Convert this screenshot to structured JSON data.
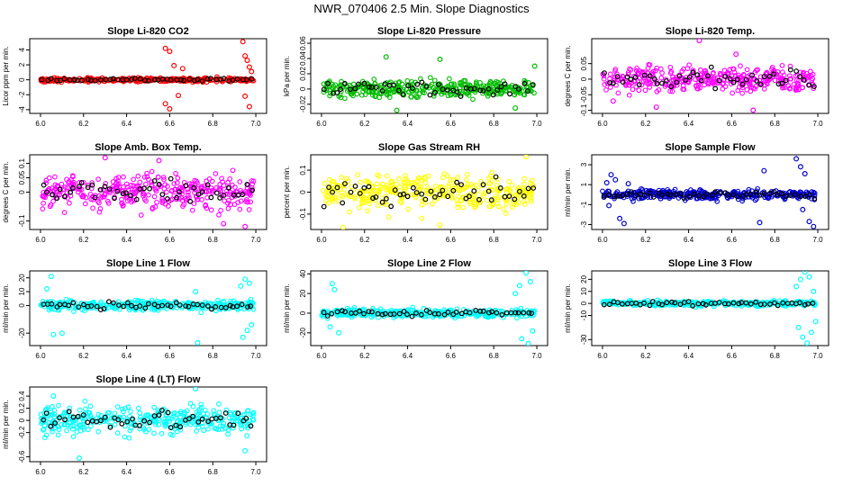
{
  "figure_title": "NWR_070406  2.5 Min. Slope Diagnostics",
  "colors": {
    "black": "#000000"
  },
  "chart_data": [
    {
      "type": "scatter",
      "title": "Slope Li-820 CO2",
      "ylabel": "Licor ppm per min.",
      "xlim": [
        5.95,
        7.05
      ],
      "xticks": [
        6.0,
        6.2,
        6.4,
        6.6,
        6.8,
        7.0
      ],
      "ylim": [
        -4.5,
        5.5
      ],
      "yticks": [
        -4,
        -2,
        0,
        2,
        4
      ],
      "color": "#ff0000",
      "base_amp": 0.25,
      "spikes": [
        {
          "x": 6.58,
          "y": 4.2
        },
        {
          "x": 6.6,
          "y": 3.8
        },
        {
          "x": 6.62,
          "y": 1.9
        },
        {
          "x": 6.66,
          "y": 1.5
        },
        {
          "x": 6.58,
          "y": -3.2
        },
        {
          "x": 6.6,
          "y": -3.9
        },
        {
          "x": 6.64,
          "y": -2.1
        },
        {
          "x": 6.94,
          "y": 5.1
        },
        {
          "x": 6.95,
          "y": 3.2
        },
        {
          "x": 6.96,
          "y": 2.6
        },
        {
          "x": 6.97,
          "y": 1.7
        },
        {
          "x": 6.95,
          "y": -2.2
        },
        {
          "x": 6.97,
          "y": -3.6
        },
        {
          "x": 6.98,
          "y": 1.1
        }
      ]
    },
    {
      "type": "scatter",
      "title": "Slope Li-820 Pressure",
      "ylabel": "kPa per min.",
      "xlim": [
        5.95,
        7.05
      ],
      "xticks": [
        6.0,
        6.2,
        6.4,
        6.6,
        6.8,
        7.0
      ],
      "ylim": [
        -0.032,
        0.066
      ],
      "yticks": [
        -0.02,
        0.0,
        0.02,
        0.04,
        0.06
      ],
      "color": "#00bb00",
      "base_amp": 0.011,
      "spikes": [
        {
          "x": 6.3,
          "y": 0.042
        },
        {
          "x": 6.55,
          "y": 0.039
        },
        {
          "x": 6.99,
          "y": 0.03
        },
        {
          "x": 6.35,
          "y": -0.028
        },
        {
          "x": 6.9,
          "y": -0.025
        }
      ]
    },
    {
      "type": "scatter",
      "title": "Slope Li-820 Temp.",
      "ylabel": "degrees C per min.",
      "xlim": [
        5.95,
        7.05
      ],
      "xticks": [
        6.0,
        6.2,
        6.4,
        6.6,
        6.8,
        7.0
      ],
      "ylim": [
        -0.11,
        0.13
      ],
      "yticks": [
        -0.1,
        -0.05,
        0.0,
        0.05
      ],
      "color": "#ff00ff",
      "base_amp": 0.038,
      "spikes": [
        {
          "x": 6.45,
          "y": 0.124
        },
        {
          "x": 6.62,
          "y": 0.08
        },
        {
          "x": 6.25,
          "y": -0.09
        },
        {
          "x": 6.7,
          "y": -0.1
        },
        {
          "x": 6.05,
          "y": -0.07
        }
      ]
    },
    {
      "type": "scatter",
      "title": "Slope Amb. Box Temp.",
      "ylabel": "degrees C per min.",
      "xlim": [
        5.95,
        7.05
      ],
      "xticks": [
        6.0,
        6.2,
        6.4,
        6.6,
        6.8,
        7.0
      ],
      "ylim": [
        -0.13,
        0.13
      ],
      "yticks": [
        -0.1,
        0.0,
        0.05,
        0.1
      ],
      "color": "#ff00ff",
      "base_amp": 0.055,
      "spikes": [
        {
          "x": 6.3,
          "y": 0.12
        },
        {
          "x": 6.55,
          "y": 0.11
        },
        {
          "x": 6.95,
          "y": -0.12
        },
        {
          "x": 6.85,
          "y": -0.11
        }
      ]
    },
    {
      "type": "scatter",
      "title": "Slope Gas Stream RH",
      "ylabel": "percent per min.",
      "xlim": [
        5.95,
        7.05
      ],
      "xticks": [
        6.0,
        6.2,
        6.4,
        6.6,
        6.8,
        7.0
      ],
      "ylim": [
        -0.17,
        0.17
      ],
      "yticks": [
        -0.1,
        0.0,
        0.1
      ],
      "color": "#ffff00",
      "base_amp": 0.075,
      "spikes": [
        {
          "x": 6.95,
          "y": 0.16
        },
        {
          "x": 6.1,
          "y": -0.16
        },
        {
          "x": 6.55,
          "y": -0.15
        }
      ]
    },
    {
      "type": "scatter",
      "title": "Slope Sample Flow",
      "ylabel": "ml/min per min.",
      "xlim": [
        5.95,
        7.05
      ],
      "xticks": [
        6.0,
        6.2,
        6.4,
        6.6,
        6.8,
        7.0
      ],
      "ylim": [
        -3.5,
        4.0
      ],
      "yticks": [
        -3,
        -1,
        1,
        3
      ],
      "color": "#0000cc",
      "base_amp": 0.45,
      "spikes": [
        {
          "x": 6.02,
          "y": 1.2
        },
        {
          "x": 6.04,
          "y": 2.0
        },
        {
          "x": 6.06,
          "y": 1.5
        },
        {
          "x": 6.03,
          "y": -1.1
        },
        {
          "x": 6.08,
          "y": -2.4
        },
        {
          "x": 6.1,
          "y": -2.9
        },
        {
          "x": 6.12,
          "y": 1.1
        },
        {
          "x": 6.75,
          "y": 2.4
        },
        {
          "x": 6.73,
          "y": -2.8
        },
        {
          "x": 6.9,
          "y": 3.6
        },
        {
          "x": 6.92,
          "y": 2.8
        },
        {
          "x": 6.94,
          "y": 2.1
        },
        {
          "x": 6.96,
          "y": -2.7
        },
        {
          "x": 6.98,
          "y": -3.2
        },
        {
          "x": 6.93,
          "y": -1.5
        }
      ]
    },
    {
      "type": "scatter",
      "title": "Slope Line 1 Flow",
      "ylabel": "ml/min per min.",
      "xlim": [
        5.95,
        7.05
      ],
      "xticks": [
        6.0,
        6.2,
        6.4,
        6.6,
        6.8,
        7.0
      ],
      "ylim": [
        -29,
        25
      ],
      "yticks": [
        -20,
        0,
        10,
        20
      ],
      "color": "#00ffff",
      "base_amp": 3.5,
      "spikes": [
        {
          "x": 6.05,
          "y": 21
        },
        {
          "x": 6.06,
          "y": -21
        },
        {
          "x": 6.1,
          "y": -20
        },
        {
          "x": 6.03,
          "y": 12
        },
        {
          "x": 6.73,
          "y": -27
        },
        {
          "x": 6.72,
          "y": 10
        },
        {
          "x": 6.93,
          "y": 14
        },
        {
          "x": 6.95,
          "y": 19
        },
        {
          "x": 6.97,
          "y": 16
        },
        {
          "x": 6.94,
          "y": -23
        },
        {
          "x": 6.96,
          "y": -18
        },
        {
          "x": 6.98,
          "y": -14
        }
      ]
    },
    {
      "type": "scatter",
      "title": "Slope Line 2 Flow",
      "ylabel": "ml/min per min.",
      "xlim": [
        5.95,
        7.05
      ],
      "xticks": [
        6.0,
        6.2,
        6.4,
        6.6,
        6.8,
        7.0
      ],
      "ylim": [
        -33,
        43
      ],
      "yticks": [
        -20,
        0,
        20,
        40
      ],
      "color": "#00ffff",
      "base_amp": 4.0,
      "spikes": [
        {
          "x": 6.05,
          "y": 30
        },
        {
          "x": 6.06,
          "y": 24
        },
        {
          "x": 6.08,
          "y": -20
        },
        {
          "x": 6.04,
          "y": -14
        },
        {
          "x": 6.9,
          "y": 20
        },
        {
          "x": 6.92,
          "y": 28
        },
        {
          "x": 6.95,
          "y": 41
        },
        {
          "x": 6.97,
          "y": 32
        },
        {
          "x": 6.93,
          "y": -26
        },
        {
          "x": 6.96,
          "y": -31
        },
        {
          "x": 6.98,
          "y": -18
        }
      ]
    },
    {
      "type": "scatter",
      "title": "Slope Line 3 Flow",
      "ylabel": "ml/min per min.",
      "xlim": [
        5.95,
        7.05
      ],
      "xticks": [
        6.0,
        6.2,
        6.4,
        6.6,
        6.8,
        7.0
      ],
      "ylim": [
        -35,
        27
      ],
      "yticks": [
        -30,
        -10,
        0,
        10,
        20
      ],
      "color": "#00ffff",
      "base_amp": 2.0,
      "spikes": [
        {
          "x": 6.9,
          "y": 14
        },
        {
          "x": 6.92,
          "y": 20
        },
        {
          "x": 6.94,
          "y": 26
        },
        {
          "x": 6.96,
          "y": 22
        },
        {
          "x": 6.98,
          "y": 10
        },
        {
          "x": 6.91,
          "y": -20
        },
        {
          "x": 6.93,
          "y": -28
        },
        {
          "x": 6.95,
          "y": -33
        },
        {
          "x": 6.97,
          "y": -24
        },
        {
          "x": 6.99,
          "y": -15
        }
      ]
    },
    {
      "type": "scatter",
      "title": "Slope Line 4 (LT) Flow",
      "ylabel": "ml/min per min.",
      "xlim": [
        5.95,
        7.05
      ],
      "xticks": [
        6.0,
        6.2,
        6.4,
        6.6,
        6.8,
        7.0
      ],
      "ylim": [
        -0.68,
        0.55
      ],
      "yticks": [
        -0.6,
        -0.2,
        0.0,
        0.2,
        0.4
      ],
      "color": "#00ffff",
      "base_amp": 0.22,
      "spikes": [
        {
          "x": 6.72,
          "y": 0.52
        },
        {
          "x": 6.18,
          "y": -0.62
        },
        {
          "x": 6.95,
          "y": -0.5
        },
        {
          "x": 6.06,
          "y": 0.4
        }
      ]
    }
  ]
}
